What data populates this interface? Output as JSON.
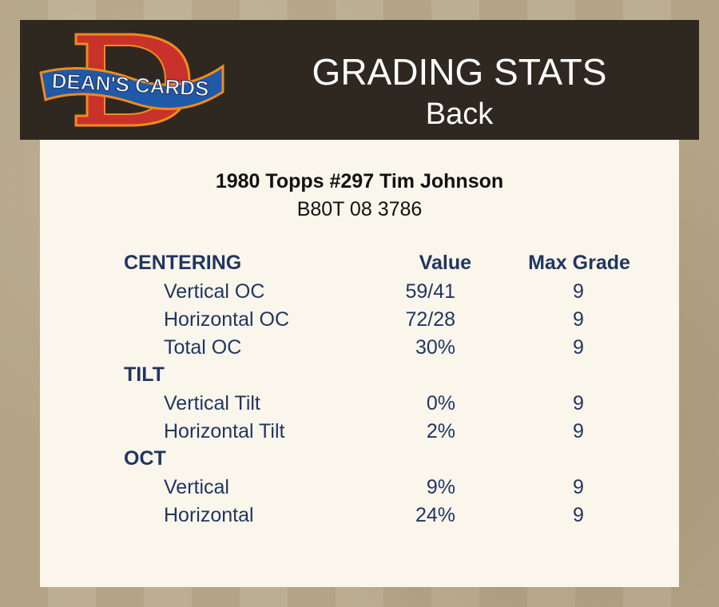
{
  "header": {
    "logo_text": "DEAN'S CARDS",
    "title": "GRADING STATS",
    "subtitle": "Back"
  },
  "card": {
    "name": "1980 Topps #297 Tim Johnson",
    "cert": "B80T 08 3786"
  },
  "table": {
    "columns": {
      "value": "Value",
      "max_grade": "Max Grade"
    },
    "sections": [
      {
        "title": "CENTERING",
        "rows": [
          {
            "label": "Vertical OC",
            "value": "59/41",
            "max": "9"
          },
          {
            "label": "Horizontal OC",
            "value": "72/28",
            "max": "9"
          },
          {
            "label": "Total OC",
            "value": "30%",
            "max": "9"
          }
        ]
      },
      {
        "title": "TILT",
        "rows": [
          {
            "label": "Vertical Tilt",
            "value": "0%",
            "max": "9"
          },
          {
            "label": "Horizontal Tilt",
            "value": "2%",
            "max": "9"
          }
        ]
      },
      {
        "title": "OCT",
        "rows": [
          {
            "label": "Vertical",
            "value": "9%",
            "max": "9"
          },
          {
            "label": "Horizontal",
            "value": "24%",
            "max": "9"
          }
        ]
      }
    ]
  },
  "colors": {
    "header_bg": "#2e2820",
    "panel_bg": "#fbf6ec",
    "text_blue": "#203660"
  }
}
